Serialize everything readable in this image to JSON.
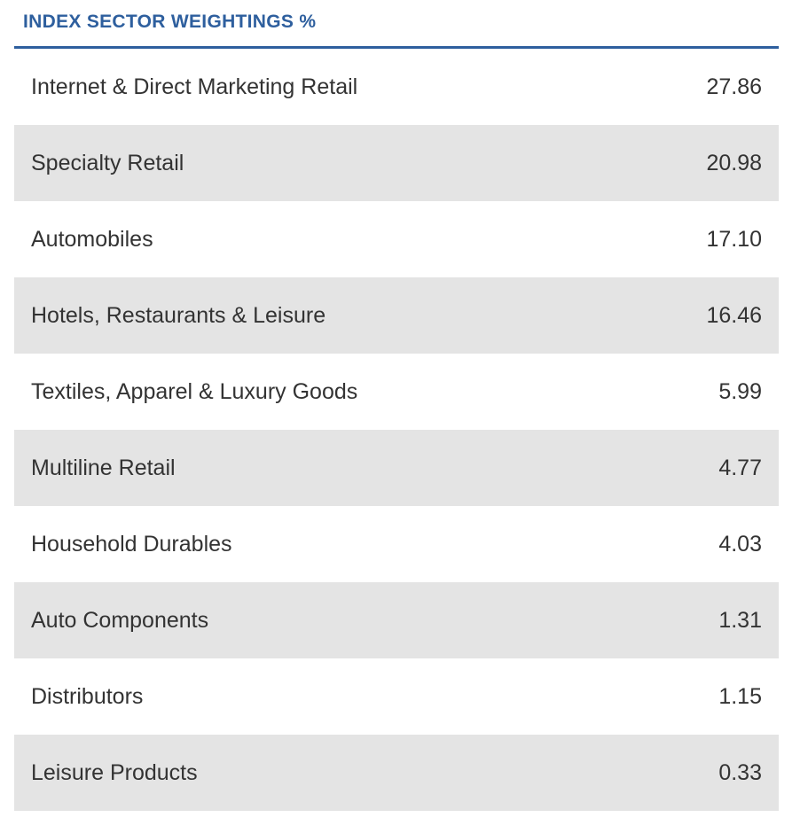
{
  "header": {
    "title": "INDEX SECTOR WEIGHTINGS %"
  },
  "colors": {
    "accent": "#2e5f9e",
    "row_alt_bg": "#e4e4e4",
    "text": "#333333"
  },
  "sectors": [
    {
      "name": "Internet & Direct Marketing Retail",
      "weight": "27.86"
    },
    {
      "name": "Specialty Retail",
      "weight": "20.98"
    },
    {
      "name": "Automobiles",
      "weight": "17.10"
    },
    {
      "name": "Hotels, Restaurants & Leisure",
      "weight": "16.46"
    },
    {
      "name": "Textiles, Apparel & Luxury Goods",
      "weight": "5.99"
    },
    {
      "name": "Multiline Retail",
      "weight": "4.77"
    },
    {
      "name": "Household Durables",
      "weight": "4.03"
    },
    {
      "name": "Auto Components",
      "weight": "1.31"
    },
    {
      "name": "Distributors",
      "weight": "1.15"
    },
    {
      "name": "Leisure Products",
      "weight": "0.33"
    }
  ]
}
